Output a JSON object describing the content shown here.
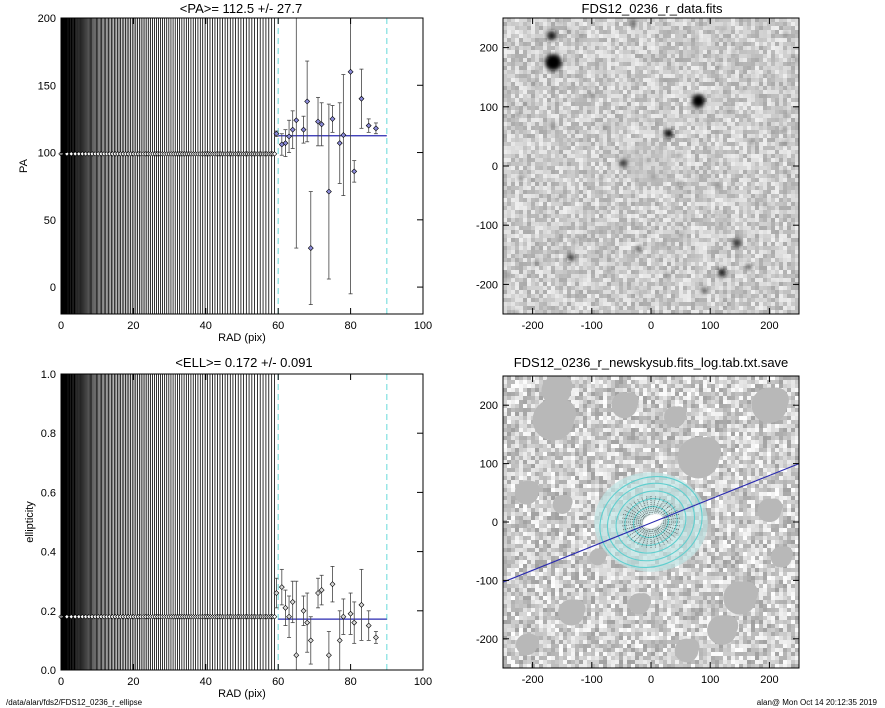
{
  "footer": {
    "left": "/data/alan/fds2/FDS12_0236_r_ellipse",
    "right": "alan@  Mon Oct 14 20:12:35 2019"
  },
  "chart_data": [
    {
      "type": "scatter",
      "title": "<PA>= 112.5 +/-  27.7",
      "xlabel": "RAD (pix)",
      "ylabel": "PA",
      "xlim": [
        0,
        100
      ],
      "ylim": [
        -20,
        200
      ],
      "xticks": [
        0,
        20,
        40,
        60,
        80,
        100
      ],
      "yticks": [
        0,
        50,
        100,
        150,
        200
      ],
      "mean_line": 112.5,
      "vlines_dashed": [
        60,
        90
      ],
      "constant_segment": {
        "from": 0,
        "to": 59,
        "value": 99
      },
      "points": [
        {
          "x": 59.5,
          "y": 114,
          "err": 2
        },
        {
          "x": 61,
          "y": 106,
          "err": 8
        },
        {
          "x": 62,
          "y": 107,
          "err": 10
        },
        {
          "x": 63,
          "y": 112,
          "err": 12
        },
        {
          "x": 64,
          "y": 117,
          "err": 14
        },
        {
          "x": 65,
          "y": 124,
          "err": 95
        },
        {
          "x": 67,
          "y": 117,
          "err": 10
        },
        {
          "x": 68,
          "y": 138,
          "err": 30
        },
        {
          "x": 69,
          "y": 29,
          "err": 42
        },
        {
          "x": 71,
          "y": 123,
          "err": 18
        },
        {
          "x": 72,
          "y": 121,
          "err": 16
        },
        {
          "x": 74,
          "y": 71,
          "err": 65
        },
        {
          "x": 75,
          "y": 125,
          "err": 10
        },
        {
          "x": 77,
          "y": 107,
          "err": 30
        },
        {
          "x": 78,
          "y": 113,
          "err": 45
        },
        {
          "x": 80,
          "y": 160,
          "err": 165
        },
        {
          "x": 81,
          "y": 86,
          "err": 8
        },
        {
          "x": 83,
          "y": 140,
          "err": 22
        },
        {
          "x": 85,
          "y": 120,
          "err": 5
        },
        {
          "x": 87,
          "y": 118,
          "err": 4
        }
      ]
    },
    {
      "type": "scatter",
      "title": "<ELL>= 0.172 +/-  0.091",
      "xlabel": "RAD (pix)",
      "ylabel": "ellipticity",
      "xlim": [
        0,
        100
      ],
      "ylim": [
        0,
        1
      ],
      "xticks": [
        0,
        20,
        40,
        60,
        80,
        100
      ],
      "yticks": [
        0.0,
        0.2,
        0.4,
        0.6,
        0.8,
        1.0
      ],
      "mean_line": 0.172,
      "vlines_dashed": [
        60,
        90
      ],
      "constant_segment": {
        "from": 0,
        "to": 59,
        "value": 0.18
      },
      "points": [
        {
          "x": 59.5,
          "y": 0.26,
          "err": 0.05
        },
        {
          "x": 61,
          "y": 0.28,
          "err": 0.06
        },
        {
          "x": 62,
          "y": 0.21,
          "err": 0.06
        },
        {
          "x": 63,
          "y": 0.18,
          "err": 0.07
        },
        {
          "x": 64,
          "y": 0.23,
          "err": 0.07
        },
        {
          "x": 65,
          "y": 0.05,
          "err": 0.25
        },
        {
          "x": 67,
          "y": 0.2,
          "err": 0.05
        },
        {
          "x": 68,
          "y": 0.16,
          "err": 0.1
        },
        {
          "x": 69,
          "y": 0.1,
          "err": 0.08
        },
        {
          "x": 71,
          "y": 0.26,
          "err": 0.05
        },
        {
          "x": 72,
          "y": 0.27,
          "err": 0.05
        },
        {
          "x": 74,
          "y": 0.05,
          "err": 0.08
        },
        {
          "x": 75,
          "y": 0.29,
          "err": 0.06
        },
        {
          "x": 77,
          "y": 0.1,
          "err": 0.1
        },
        {
          "x": 78,
          "y": 0.18,
          "err": 0.06
        },
        {
          "x": 80,
          "y": 0.19,
          "err": 0.07
        },
        {
          "x": 81,
          "y": 0.16,
          "err": 0.07
        },
        {
          "x": 83,
          "y": 0.22,
          "err": 0.12
        },
        {
          "x": 85,
          "y": 0.15,
          "err": 0.05
        },
        {
          "x": 87,
          "y": 0.11,
          "err": 0.02
        }
      ]
    },
    {
      "type": "heatmap",
      "title": "FDS12_0236_r_data.fits",
      "xlim": [
        -250,
        250
      ],
      "ylim": [
        -250,
        250
      ],
      "xticks": [
        -200,
        -100,
        0,
        100,
        200
      ],
      "yticks": [
        -200,
        -100,
        0,
        100,
        200
      ],
      "sources": [
        {
          "x": -165,
          "y": 175,
          "r": 14,
          "i": 1.0
        },
        {
          "x": -168,
          "y": 220,
          "r": 8,
          "i": 0.9
        },
        {
          "x": 80,
          "y": 110,
          "r": 11,
          "i": 1.0
        },
        {
          "x": 30,
          "y": 55,
          "r": 7,
          "i": 1.0
        },
        {
          "x": -45,
          "y": 5,
          "r": 7,
          "i": 1.0
        },
        {
          "x": -5,
          "y": 5,
          "r": 40,
          "i": 0.25
        },
        {
          "x": -30,
          "y": 240,
          "r": 5,
          "i": 0.7
        },
        {
          "x": -135,
          "y": -155,
          "r": 6,
          "i": 0.8
        },
        {
          "x": -20,
          "y": -140,
          "r": 5,
          "i": 0.7
        },
        {
          "x": 145,
          "y": -130,
          "r": 7,
          "i": 0.8
        },
        {
          "x": 120,
          "y": -180,
          "r": 7,
          "i": 0.9
        },
        {
          "x": 165,
          "y": -170,
          "r": 5,
          "i": 0.7
        },
        {
          "x": 90,
          "y": -210,
          "r": 5,
          "i": 0.7
        },
        {
          "x": -220,
          "y": -20,
          "r": 4,
          "i": 0.6
        },
        {
          "x": 50,
          "y": -30,
          "r": 4,
          "i": 0.6
        },
        {
          "x": -100,
          "y": 120,
          "r": 4,
          "i": 0.5
        },
        {
          "x": 170,
          "y": 40,
          "r": 4,
          "i": 0.5
        }
      ]
    },
    {
      "type": "heatmap",
      "title": "FDS12_0236_r_newskysub.fits_log.tab.txt.save",
      "xlim": [
        -250,
        250
      ],
      "ylim": [
        -250,
        250
      ],
      "xticks": [
        -200,
        -100,
        0,
        100,
        200
      ],
      "yticks": [
        -200,
        -100,
        0,
        100,
        200
      ],
      "line": {
        "x1": -250,
        "y1": -103,
        "x2": 250,
        "y2": 100
      },
      "center": {
        "x": 0,
        "y": 0
      },
      "ellipse_radii": [
        30,
        45,
        60,
        75,
        88
      ],
      "mask_patches": [
        {
          "x": -165,
          "y": 175,
          "r": 35
        },
        {
          "x": -160,
          "y": 225,
          "r": 25
        },
        {
          "x": 80,
          "y": 110,
          "r": 35
        },
        {
          "x": -45,
          "y": 200,
          "r": 22
        },
        {
          "x": 200,
          "y": 200,
          "r": 30
        },
        {
          "x": -210,
          "y": 50,
          "r": 20
        },
        {
          "x": 150,
          "y": -130,
          "r": 28
        },
        {
          "x": 120,
          "y": -185,
          "r": 25
        },
        {
          "x": -135,
          "y": -155,
          "r": 22
        },
        {
          "x": -20,
          "y": -140,
          "r": 18
        },
        {
          "x": 60,
          "y": -220,
          "r": 20
        },
        {
          "x": -210,
          "y": -210,
          "r": 18
        },
        {
          "x": 200,
          "y": 20,
          "r": 20
        },
        {
          "x": -150,
          "y": 30,
          "r": 16
        },
        {
          "x": 40,
          "y": 180,
          "r": 18
        },
        {
          "x": 220,
          "y": -60,
          "r": 18
        },
        {
          "x": -90,
          "y": -60,
          "r": 14
        }
      ]
    }
  ]
}
